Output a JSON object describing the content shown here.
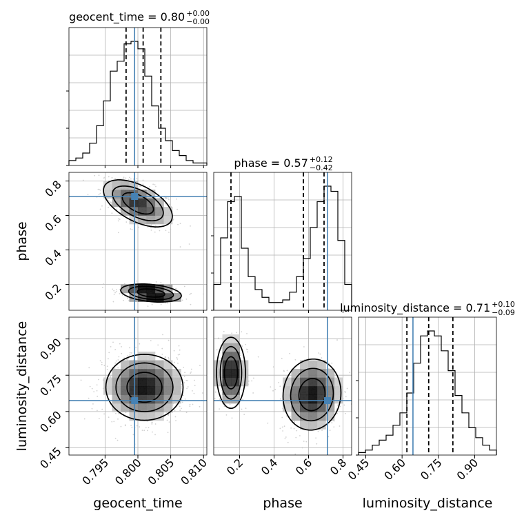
{
  "chart_data": {
    "type": "corner",
    "parameters": [
      "geocent_time",
      "phase",
      "luminosity_distance"
    ],
    "titles": [
      {
        "param": "geocent_time",
        "label": "geocent_time = 0.80",
        "upper": "+0.00",
        "lower": "−0.00"
      },
      {
        "param": "phase",
        "label": "phase = 0.57",
        "upper": "+0.12",
        "lower": "−0.42"
      },
      {
        "param": "luminosity_distance",
        "label": "luminosity_distance = 0.71",
        "upper": "+0.10",
        "lower": "−0.09"
      }
    ],
    "ranges": {
      "geocent_time": [
        0.7895,
        0.8105
      ],
      "phase": [
        0.05,
        0.85
      ],
      "luminosity_distance": [
        0.42,
        0.99
      ]
    },
    "ticks": {
      "geocent_time": [
        "0.795",
        "0.800",
        "0.805",
        "0.810"
      ],
      "phase": [
        "0.2",
        "0.4",
        "0.6",
        "0.8"
      ],
      "luminosity_distance": [
        "0.45",
        "0.60",
        "0.75",
        "0.90"
      ]
    },
    "truths": {
      "geocent_time": 0.7995,
      "phase": 0.71,
      "luminosity_distance": 0.645
    },
    "quantiles": {
      "geocent_time": [
        0.7982,
        0.8008,
        0.8035
      ],
      "phase": [
        0.15,
        0.57,
        0.69
      ],
      "luminosity_distance": [
        0.62,
        0.71,
        0.81
      ]
    },
    "histograms": {
      "geocent_time": {
        "edges_range": [
          0.7895,
          0.8105
        ],
        "counts": [
          2,
          3,
          5,
          9,
          16,
          26,
          38,
          42,
          49,
          50,
          47,
          36,
          24,
          15,
          10,
          6,
          4,
          2,
          1,
          1
        ]
      },
      "phase": {
        "edges_range": [
          0.05,
          0.85
        ],
        "counts": [
          10,
          28,
          42,
          44,
          24,
          13,
          8,
          5,
          3,
          3,
          4,
          7,
          13,
          20,
          32,
          42,
          48,
          46,
          27,
          10
        ]
      },
      "luminosity_distance": {
        "edges_range": [
          0.42,
          0.99
        ],
        "counts": [
          1,
          2,
          4,
          6,
          8,
          12,
          17,
          25,
          37,
          48,
          50,
          48,
          42,
          34,
          24,
          17,
          11,
          7,
          4,
          2
        ]
      }
    },
    "grid": true
  }
}
